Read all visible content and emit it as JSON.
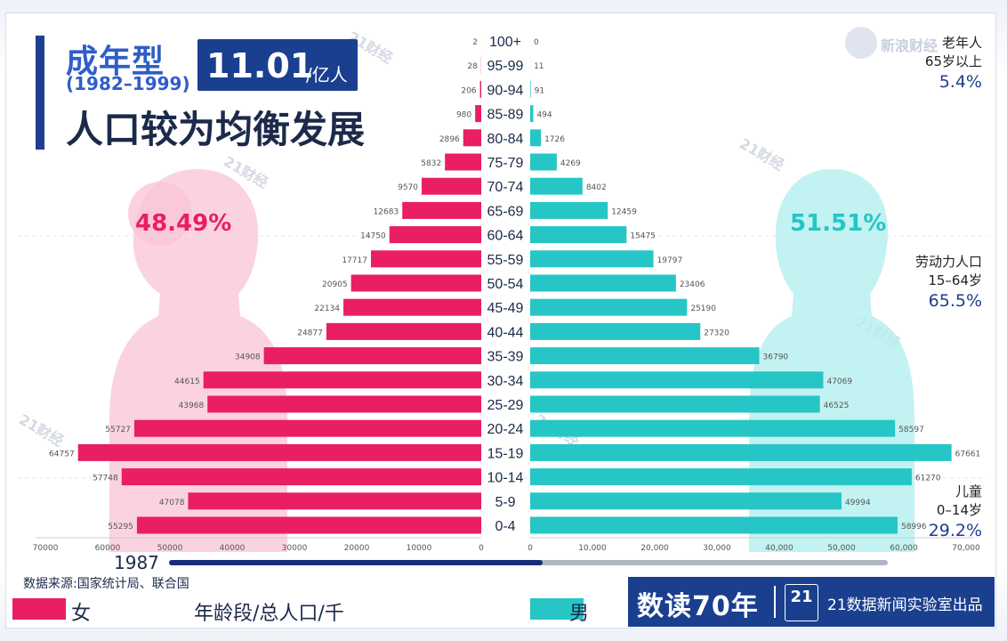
{
  "title": {
    "type_label": "成年型",
    "years": "(1982–1999)",
    "population_value": "11.01",
    "population_unit": "/亿人",
    "headline": "人口较为均衡发展"
  },
  "side_labels": {
    "elderly": {
      "line1": "老年人",
      "line2": "65岁以上",
      "percent": "5.4%"
    },
    "labor": {
      "line1": "劳动力人口",
      "line2": "15–64岁",
      "percent": "65.5%"
    },
    "children": {
      "line1": "儿童",
      "line2": "0–14岁",
      "percent": "29.2%"
    }
  },
  "female_share": "48.49%",
  "male_share": "51.51%",
  "timeline": {
    "year": "1987",
    "progress": 0.52
  },
  "source": "数据来源:国家统计局、联合国",
  "legend": {
    "female": "女",
    "male": "男",
    "center": "年龄段/总人口/千"
  },
  "brand": {
    "name": "数读70年",
    "logo": "21",
    "text": "21数据新闻实验室出品"
  },
  "watermark": {
    "site": "新浪财经",
    "mark": "21财经"
  },
  "colors": {
    "female": "#e91e63",
    "male": "#26c6c6",
    "navy": "#1a3f8f",
    "female_silhouette": "#f9c4d6",
    "male_silhouette": "#b7f0ee"
  },
  "chart_data": {
    "type": "bar",
    "orientation": "horizontal-pyramid",
    "categories": [
      "100+",
      "95-99",
      "90-94",
      "85-89",
      "80-84",
      "75-79",
      "70-74",
      "65-69",
      "60-64",
      "55-59",
      "50-54",
      "45-49",
      "40-44",
      "35-39",
      "30-34",
      "25-29",
      "20-24",
      "15-19",
      "10-14",
      "5-9",
      "0-4"
    ],
    "series": [
      {
        "name": "女",
        "values": [
          2,
          28,
          206,
          980,
          2896,
          5832,
          9570,
          12683,
          14750,
          17717,
          20905,
          22134,
          24877,
          34908,
          44615,
          43968,
          55727,
          64757,
          57748,
          47078,
          55295
        ]
      },
      {
        "name": "男",
        "values": [
          0,
          11,
          91,
          494,
          1726,
          4269,
          8402,
          12459,
          15475,
          19797,
          23406,
          25190,
          27320,
          36790,
          47069,
          46525,
          58597,
          67661,
          61270,
          49994,
          58996
        ]
      }
    ],
    "female_ticks": [
      "70000",
      "60000",
      "50000",
      "40000",
      "30000",
      "20000",
      "10000",
      "0"
    ],
    "male_ticks": [
      "0",
      "10,000",
      "20,000",
      "30,000",
      "40,000",
      "50,000",
      "60,000",
      "70,000"
    ],
    "xlim": [
      0,
      70000
    ],
    "xlabel": "年龄段/总人口/千"
  }
}
